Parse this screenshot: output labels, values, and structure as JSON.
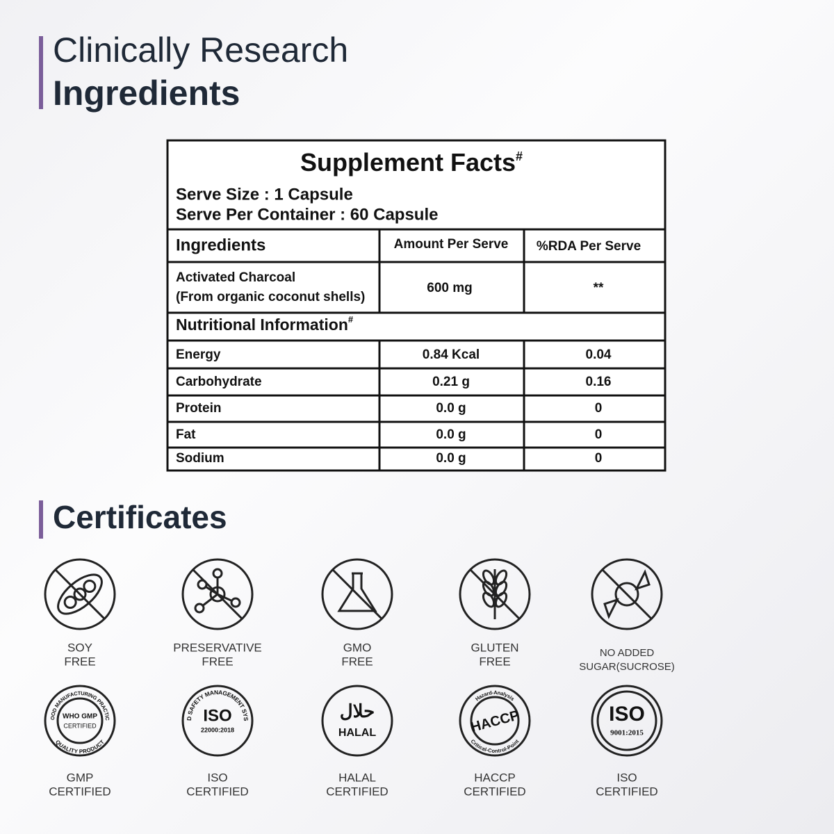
{
  "header": {
    "line1": "Clinically Research",
    "line2": "Ingredients"
  },
  "table": {
    "title": "Supplement Facts",
    "title_mark": "#",
    "serve_size": "Serve Size : 1 Capsule",
    "serve_per_container": "Serve Per Container : 60 Capsule",
    "columns": [
      "Ingredients",
      "Amount Per Serve",
      "%RDA Per Serve"
    ],
    "ingredient": {
      "name": "Activated Charcoal",
      "source": "(From organic coconut shells)",
      "amount": "600 mg",
      "rda": "**"
    },
    "nutrition_title": "Nutritional Information",
    "nutrition_mark": "#",
    "rows": [
      [
        "Energy",
        "0.84 Kcal",
        "0.04"
      ],
      [
        "Carbohydrate",
        "0.21 g",
        "0.16"
      ],
      [
        "Protein",
        "0.0 g",
        "0"
      ],
      [
        "Fat",
        "0.0 g",
        "0"
      ],
      [
        "Sodium",
        "0.0 g",
        "0"
      ]
    ]
  },
  "certificates": {
    "title": "Certificates",
    "free": [
      {
        "lines": [
          "SOY",
          "FREE"
        ]
      },
      {
        "lines": [
          "PRESERVATIVE",
          "FREE"
        ]
      },
      {
        "lines": [
          "GMO",
          "FREE"
        ]
      },
      {
        "lines": [
          "GLUTEN",
          "FREE"
        ]
      },
      {
        "lines": [
          "NO ADDED",
          "SUGAR(SUCROSE)"
        ]
      }
    ],
    "certified": [
      {
        "badge": [
          "WHO GMP",
          "CERTIFIED",
          "GOOD MANUFACTURING PRACTICE",
          "QUALITY PRODUCT"
        ],
        "lines": [
          "GMP",
          "CERTIFIED"
        ]
      },
      {
        "badge": [
          "ISO",
          "22000:2018",
          "FOOD SAFETY MANAGEMENT SYSTEM"
        ],
        "lines": [
          "ISO",
          "CERTIFIED"
        ]
      },
      {
        "badge": [
          "حلال",
          "HALAL"
        ],
        "lines": [
          "HALAL",
          "CERTIFIED"
        ]
      },
      {
        "badge": [
          "HACCP",
          "Hazard-Analysis",
          "Critical-Control-Point"
        ],
        "lines": [
          "HACCP",
          "CERTIFIED"
        ]
      },
      {
        "badge": [
          "ISO",
          "9001:2015"
        ],
        "lines": [
          "ISO",
          "CERTIFIED"
        ]
      }
    ]
  }
}
